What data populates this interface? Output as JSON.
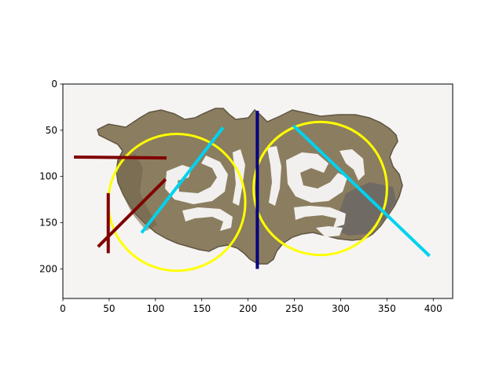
{
  "figure": {
    "colors": {
      "yellow": "#ffff00",
      "cyan": "#00d2ef",
      "dark_red": "#800000",
      "navy": "#000080",
      "background": "#f5f4f2",
      "jade": "#8b7d5f"
    }
  },
  "axes": {
    "x_ticks": [
      {
        "value": 0,
        "label": "0"
      },
      {
        "value": 50,
        "label": "50"
      },
      {
        "value": 100,
        "label": "100"
      },
      {
        "value": 150,
        "label": "150"
      },
      {
        "value": 200,
        "label": "200"
      },
      {
        "value": 250,
        "label": "250"
      },
      {
        "value": 300,
        "label": "300"
      },
      {
        "value": 350,
        "label": "350"
      },
      {
        "value": 400,
        "label": "400"
      }
    ],
    "y_ticks": [
      {
        "value": 0,
        "label": "0"
      },
      {
        "value": 50,
        "label": "50"
      },
      {
        "value": 100,
        "label": "100"
      },
      {
        "value": 150,
        "label": "150"
      },
      {
        "value": 200,
        "label": "200"
      }
    ]
  },
  "overlays": {
    "circles": [
      {
        "name": "yellow-circle-left",
        "cx": 123,
        "cy": 128,
        "r": 74,
        "color": "yellow"
      },
      {
        "name": "yellow-circle-right",
        "cx": 278,
        "cy": 113,
        "r": 72,
        "color": "yellow"
      }
    ],
    "lines": [
      {
        "name": "cyan-line-left",
        "x1": 85,
        "y1": 161,
        "x2": 173,
        "y2": 47,
        "color": "cyan"
      },
      {
        "name": "cyan-line-right",
        "x1": 249,
        "y1": 45,
        "x2": 396,
        "y2": 186,
        "color": "cyan"
      },
      {
        "name": "navy-vertical-line",
        "x1": 210,
        "y1": 29,
        "x2": 210,
        "y2": 200,
        "color": "navy"
      },
      {
        "name": "dark-red-horizontal-line",
        "x1": 12,
        "y1": 79,
        "x2": 112,
        "y2": 80,
        "color": "dark_red"
      },
      {
        "name": "dark-red-diagonal-line",
        "x1": 38,
        "y1": 176,
        "x2": 111,
        "y2": 103,
        "color": "dark_red"
      },
      {
        "name": "dark-red-vertical-line",
        "x1": 49,
        "y1": 118,
        "x2": 49,
        "y2": 183,
        "color": "dark_red"
      }
    ]
  }
}
